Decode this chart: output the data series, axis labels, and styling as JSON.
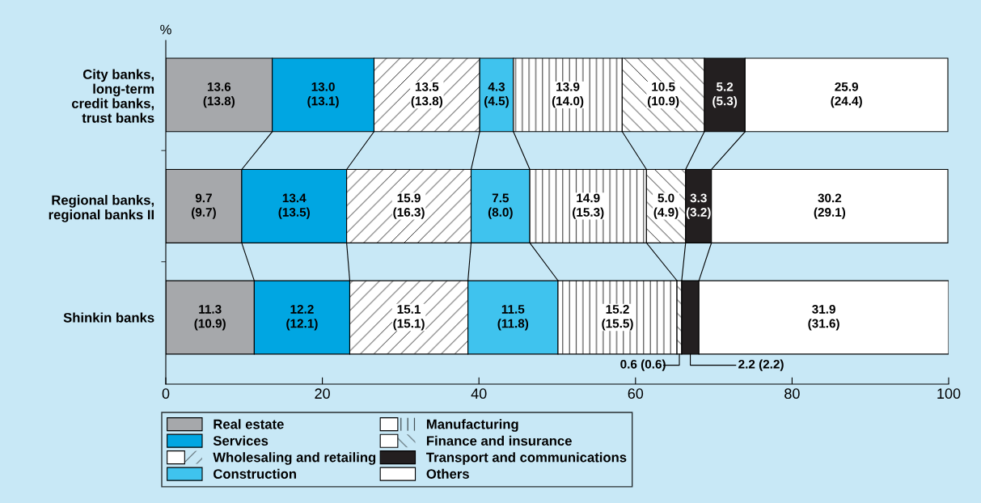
{
  "chart_data": {
    "type": "bar",
    "orientation": "horizontal",
    "stacked": true,
    "xlabel": "%",
    "categories": [
      "City banks,\nlong-term\ncredit banks,\ntrust banks",
      "Regional banks,\nregional banks II",
      "Shinkin banks"
    ],
    "series": [
      {
        "name": "Real estate",
        "color": "#a6a8ab",
        "values": [
          13.6,
          9.7,
          11.3
        ],
        "value_labels": [
          "13.6\n(13.8)",
          "9.7\n(9.7)",
          "11.3\n(10.9)"
        ]
      },
      {
        "name": "Services",
        "color": "#00a6e2",
        "values": [
          13.0,
          13.4,
          12.2
        ],
        "value_labels": [
          "13.0\n(13.1)",
          "13.4\n(13.5)",
          "12.2\n(12.1)"
        ]
      },
      {
        "name": "Wholesaling and retailing",
        "color": "#ffffff",
        "values": [
          13.5,
          15.9,
          15.1
        ],
        "value_labels": [
          "13.5\n(13.8)",
          "15.9\n(16.3)",
          "15.1\n(15.1)"
        ]
      },
      {
        "name": "Construction",
        "color": "#3fc3ee",
        "values": [
          4.3,
          7.5,
          11.5
        ],
        "value_labels": [
          "4.3\n(4.5)",
          "7.5\n(8.0)",
          "11.5\n(11.8)"
        ]
      },
      {
        "name": "Manufacturing",
        "color": "#ffffff",
        "values": [
          13.9,
          14.9,
          15.2
        ],
        "value_labels": [
          "13.9\n(14.0)",
          "14.9\n(15.3)",
          "15.2\n(15.5)"
        ]
      },
      {
        "name": "Finance and insurance",
        "color": "#ffffff",
        "values": [
          10.5,
          5.0,
          0.6
        ],
        "value_labels": [
          "10.5\n(10.9)",
          "5.0\n(4.9)",
          "0.6 (0.6)"
        ]
      },
      {
        "name": "Transport and communications",
        "color": "#231f20",
        "values": [
          5.2,
          3.3,
          2.2
        ],
        "value_labels": [
          "5.2\n(5.3)",
          "3.3\n(3.2)",
          "2.2 (2.2)"
        ]
      },
      {
        "name": "Others",
        "color": "#ffffff",
        "values": [
          25.9,
          30.2,
          31.9
        ],
        "value_labels": [
          "25.9\n(24.4)",
          "30.2\n(29.1)",
          "31.9\n(31.6)"
        ]
      }
    ],
    "xlim": [
      0,
      100
    ],
    "xticks": [
      0,
      20,
      40,
      60,
      80,
      100
    ],
    "grid": false,
    "legend": "bottom"
  }
}
